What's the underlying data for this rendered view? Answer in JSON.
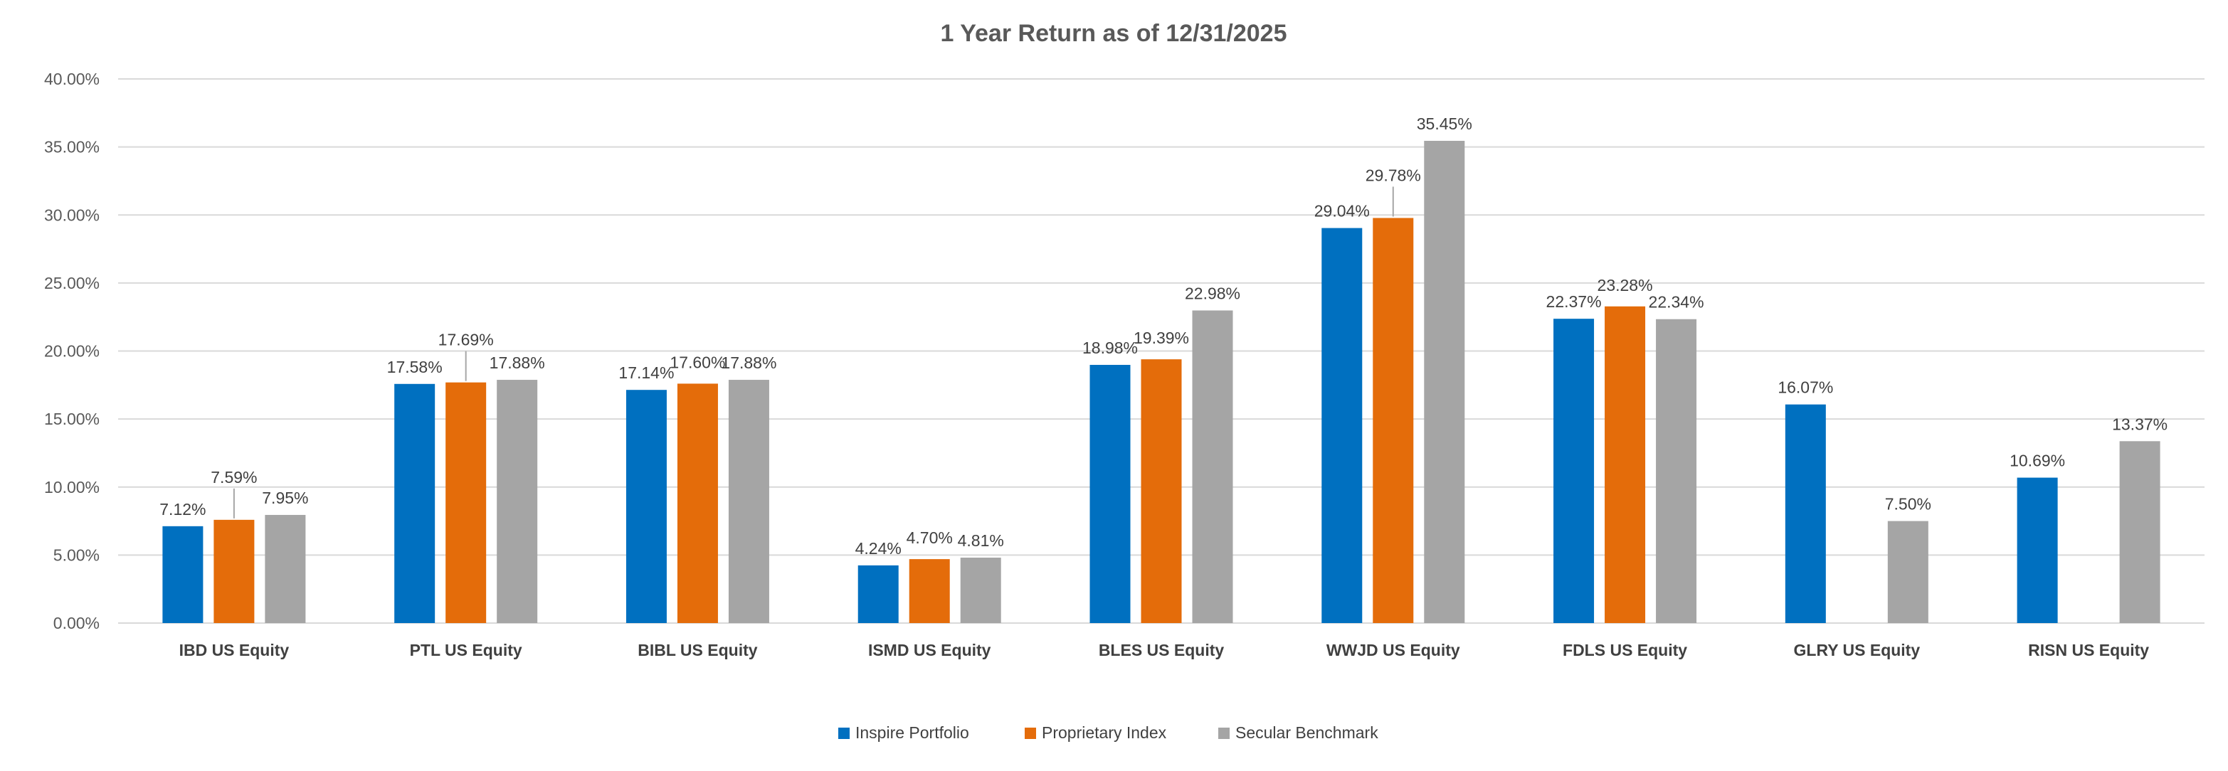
{
  "chart_data": {
    "type": "bar",
    "title": "1 Year Return as of 12/31/2025",
    "xlabel": "",
    "ylabel": "",
    "ylim": [
      0,
      40
    ],
    "yticks": [
      "0.00%",
      "5.00%",
      "10.00%",
      "15.00%",
      "20.00%",
      "25.00%",
      "30.00%",
      "35.00%",
      "40.00%"
    ],
    "grid": true,
    "legend_position": "bottom",
    "categories": [
      "IBD US Equity",
      "PTL US Equity",
      "BIBL US Equity",
      "ISMD US Equity",
      "BLES US Equity",
      "WWJD US Equity",
      "FDLS US Equity",
      "GLRY US Equity",
      "RISN US Equity"
    ],
    "series": [
      {
        "name": "Inspire Portfolio",
        "color": "#0070c0",
        "values": [
          7.12,
          17.58,
          17.14,
          4.24,
          18.98,
          29.04,
          22.37,
          16.07,
          10.69
        ],
        "labels": [
          "7.12%",
          "17.58%",
          "17.14%",
          "4.24%",
          "18.98%",
          "29.04%",
          "22.37%",
          "16.07%",
          "10.69%"
        ]
      },
      {
        "name": "Proprietary Index",
        "color": "#e46c0a",
        "values": [
          7.59,
          17.69,
          17.6,
          4.7,
          19.39,
          29.78,
          23.28,
          null,
          null
        ],
        "labels": [
          "7.59%",
          "17.69%",
          "17.60%",
          "4.70%",
          "19.39%",
          "29.78%",
          "23.28%",
          null,
          null
        ]
      },
      {
        "name": "Secular Benchmark",
        "color": "#a5a5a5",
        "values": [
          7.95,
          17.88,
          17.88,
          4.81,
          22.98,
          35.45,
          22.34,
          7.5,
          13.37
        ],
        "labels": [
          "7.95%",
          "17.88%",
          "17.88%",
          "4.81%",
          "22.98%",
          "35.45%",
          "22.34%",
          "7.50%",
          "13.37%"
        ]
      }
    ]
  }
}
